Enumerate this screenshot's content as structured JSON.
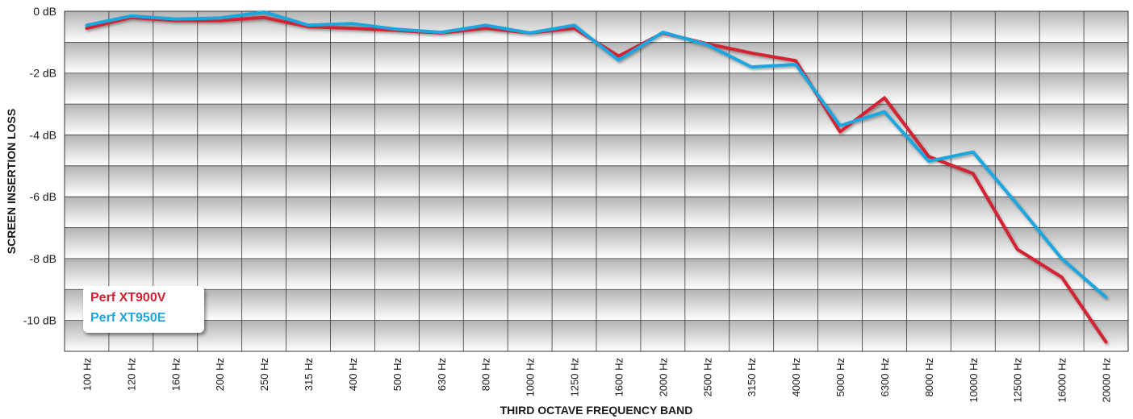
{
  "chart_data": {
    "type": "line",
    "title": "",
    "xlabel": "THIRD OCTAVE FREQUENCY BAND",
    "ylabel": "SCREEN INSERTION LOSS",
    "ylim": [
      -11,
      0
    ],
    "y_ticks": [
      {
        "value": 0,
        "label": "0 dB"
      },
      {
        "value": -2,
        "label": "-2 dB"
      },
      {
        "value": -4,
        "label": "-4 dB"
      },
      {
        "value": -6,
        "label": "-6 dB"
      },
      {
        "value": -8,
        "label": "-8 dB"
      },
      {
        "value": -10,
        "label": "-10 dB"
      }
    ],
    "categories": [
      "100 Hz",
      "120 Hz",
      "160 Hz",
      "200 Hz",
      "250 Hz",
      "315 Hz",
      "400 Hz",
      "500 Hz",
      "630 Hz",
      "800 Hz",
      "1000 Hz",
      "1250 Hz",
      "1600 Hz",
      "2000 Hz",
      "2500 Hz",
      "3150 Hz",
      "4000 Hz",
      "5000 Hz",
      "6300 Hz",
      "8000 Hz",
      "10000 Hz",
      "12500 Hz",
      "16000 Hz",
      "20000 Hz"
    ],
    "grid": true,
    "legend_position": "bottom-left",
    "series": [
      {
        "name": "Perf XT900V",
        "color": "#d42030",
        "values": [
          -0.55,
          -0.2,
          -0.3,
          -0.3,
          -0.2,
          -0.5,
          -0.55,
          -0.62,
          -0.7,
          -0.55,
          -0.7,
          -0.55,
          -1.45,
          -0.7,
          -1.05,
          -1.35,
          -1.6,
          -3.9,
          -2.8,
          -4.7,
          -5.25,
          -7.7,
          -8.6,
          -10.7
        ]
      },
      {
        "name": "Perf XT950E",
        "color": "#1fa6e0",
        "values": [
          -0.45,
          -0.15,
          -0.25,
          -0.22,
          -0.02,
          -0.45,
          -0.4,
          -0.58,
          -0.68,
          -0.45,
          -0.7,
          -0.45,
          -1.58,
          -0.68,
          -1.08,
          -1.8,
          -1.72,
          -3.7,
          -3.25,
          -4.85,
          -4.55,
          -6.25,
          -8.0,
          -9.25
        ]
      }
    ]
  }
}
